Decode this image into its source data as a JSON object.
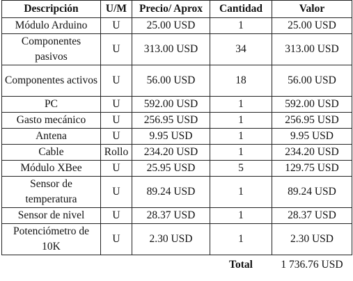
{
  "table": {
    "headers": {
      "descripcion": "Descripción",
      "um": "U/M",
      "precio": "Precio/ Aprox",
      "cantidad": "Cantidad",
      "valor": "Valor"
    },
    "rows": [
      {
        "descripcion": "Módulo Arduino",
        "um": "U",
        "precio": "25.00 USD",
        "cantidad": "1",
        "valor": "25.00 USD"
      },
      {
        "descripcion": "Componentes pasivos",
        "um": "U",
        "precio": "313.00 USD",
        "cantidad": "34",
        "valor": "313.00 USD"
      },
      {
        "descripcion": "Componentes activos",
        "um": "U",
        "precio": "56.00 USD",
        "cantidad": "18",
        "valor": "56.00 USD"
      },
      {
        "descripcion": "PC",
        "um": "U",
        "precio": "592.00 USD",
        "cantidad": "1",
        "valor": "592.00 USD"
      },
      {
        "descripcion": "Gasto mecánico",
        "um": "U",
        "precio": "256.95 USD",
        "cantidad": "1",
        "valor": "256.95 USD"
      },
      {
        "descripcion": "Antena",
        "um": "U",
        "precio": "9.95 USD",
        "cantidad": "1",
        "valor": "9.95 USD"
      },
      {
        "descripcion": "Cable",
        "um": "Rollo",
        "precio": "234.20 USD",
        "cantidad": "1",
        "valor": "234.20 USD"
      },
      {
        "descripcion": "Módulo XBee",
        "um": "U",
        "precio": "25.95 USD",
        "cantidad": "5",
        "valor": "129.75 USD"
      },
      {
        "descripcion": "Sensor de temperatura",
        "um": "U",
        "precio": "89.24 USD",
        "cantidad": "1",
        "valor": "89.24 USD"
      },
      {
        "descripcion": "Sensor de nivel",
        "um": "U",
        "precio": "28.37 USD",
        "cantidad": "1",
        "valor": "28.37 USD"
      },
      {
        "descripcion": "Potenciómetro de 10K",
        "um": "U",
        "precio": "2.30 USD",
        "cantidad": "1",
        "valor": "2.30 USD"
      }
    ],
    "total": {
      "label": "Total",
      "value": "1 736.76 USD"
    }
  }
}
